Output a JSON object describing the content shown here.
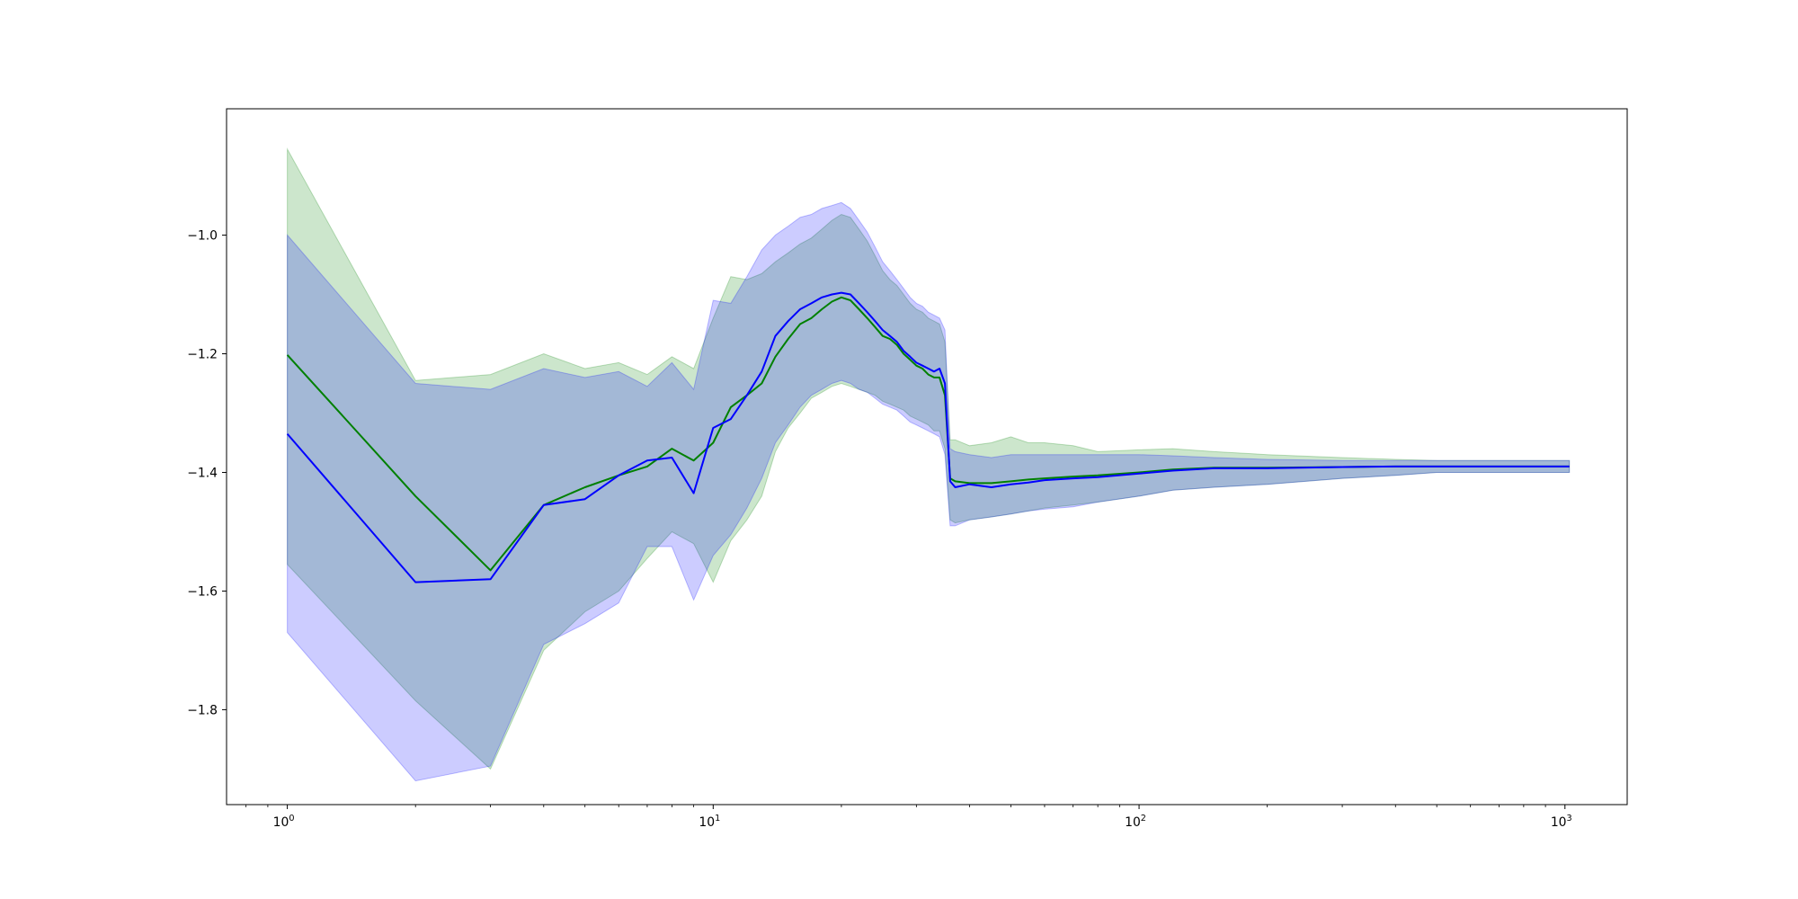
{
  "chart_data": {
    "type": "line",
    "title": "",
    "xlabel": "",
    "ylabel": "",
    "xscale": "log",
    "xlim": [
      0.72,
      1400
    ],
    "ylim": [
      -1.96,
      -0.787
    ],
    "grid": false,
    "legend": "none",
    "x_ticks": [
      {
        "value": 1,
        "base": "10",
        "exp": "0"
      },
      {
        "value": 10,
        "base": "10",
        "exp": "1"
      },
      {
        "value": 100,
        "base": "10",
        "exp": "2"
      },
      {
        "value": 1000,
        "base": "10",
        "exp": "3"
      }
    ],
    "y_ticks": [
      {
        "value": -1.0,
        "label": "−1.0"
      },
      {
        "value": -1.2,
        "label": "−1.2"
      },
      {
        "value": -1.4,
        "label": "−1.4"
      },
      {
        "value": -1.6,
        "label": "−1.6"
      },
      {
        "value": -1.8,
        "label": "−1.8"
      }
    ],
    "series": [
      {
        "color": "#008000",
        "band_color": "#008000",
        "band_opacity": 0.2,
        "x": [
          1,
          2,
          3,
          4,
          5,
          6,
          7,
          8,
          9,
          10,
          11,
          12,
          13,
          14,
          15,
          16,
          17,
          18,
          19,
          20,
          21,
          22,
          23,
          24,
          25,
          26,
          27,
          28,
          29,
          30,
          31,
          32,
          33,
          34,
          35,
          36,
          37,
          40,
          45,
          50,
          55,
          60,
          70,
          80,
          100,
          120,
          150,
          200,
          300,
          400,
          500,
          700,
          1024
        ],
        "mean": [
          -1.202,
          -1.44,
          -1.565,
          -1.455,
          -1.425,
          -1.405,
          -1.39,
          -1.36,
          -1.38,
          -1.35,
          -1.29,
          -1.27,
          -1.25,
          -1.205,
          -1.175,
          -1.15,
          -1.14,
          -1.125,
          -1.112,
          -1.105,
          -1.11,
          -1.125,
          -1.14,
          -1.155,
          -1.17,
          -1.175,
          -1.185,
          -1.2,
          -1.21,
          -1.22,
          -1.225,
          -1.235,
          -1.24,
          -1.24,
          -1.27,
          -1.41,
          -1.415,
          -1.418,
          -1.418,
          -1.415,
          -1.412,
          -1.41,
          -1.407,
          -1.405,
          -1.4,
          -1.395,
          -1.392,
          -1.392,
          -1.391,
          -1.39,
          -1.39,
          -1.39,
          -1.39
        ],
        "upper": [
          -0.855,
          -1.245,
          -1.235,
          -1.2,
          -1.225,
          -1.215,
          -1.235,
          -1.205,
          -1.225,
          -1.14,
          -1.07,
          -1.075,
          -1.065,
          -1.045,
          -1.03,
          -1.015,
          -1.005,
          -0.99,
          -0.975,
          -0.965,
          -0.97,
          -0.99,
          -1.01,
          -1.035,
          -1.06,
          -1.075,
          -1.085,
          -1.1,
          -1.115,
          -1.125,
          -1.13,
          -1.14,
          -1.145,
          -1.15,
          -1.18,
          -1.345,
          -1.345,
          -1.355,
          -1.35,
          -1.34,
          -1.35,
          -1.35,
          -1.355,
          -1.365,
          -1.362,
          -1.36,
          -1.365,
          -1.37,
          -1.375,
          -1.378,
          -1.38,
          -1.38,
          -1.38
        ],
        "lower": [
          -1.555,
          -1.785,
          -1.9,
          -1.7,
          -1.635,
          -1.6,
          -1.545,
          -1.5,
          -1.52,
          -1.585,
          -1.515,
          -1.48,
          -1.44,
          -1.365,
          -1.325,
          -1.3,
          -1.275,
          -1.265,
          -1.255,
          -1.25,
          -1.255,
          -1.26,
          -1.265,
          -1.27,
          -1.28,
          -1.285,
          -1.29,
          -1.295,
          -1.305,
          -1.31,
          -1.315,
          -1.32,
          -1.33,
          -1.33,
          -1.36,
          -1.48,
          -1.485,
          -1.48,
          -1.475,
          -1.47,
          -1.465,
          -1.46,
          -1.455,
          -1.45,
          -1.44,
          -1.43,
          -1.425,
          -1.42,
          -1.41,
          -1.405,
          -1.4,
          -1.4,
          -1.4
        ]
      },
      {
        "color": "#0000ff",
        "band_color": "#0000ff",
        "band_opacity": 0.2,
        "x": [
          1,
          2,
          3,
          4,
          5,
          6,
          7,
          8,
          9,
          10,
          11,
          12,
          13,
          14,
          15,
          16,
          17,
          18,
          19,
          20,
          21,
          22,
          23,
          24,
          25,
          26,
          27,
          28,
          29,
          30,
          31,
          32,
          33,
          34,
          35,
          36,
          37,
          40,
          45,
          50,
          55,
          60,
          70,
          80,
          100,
          120,
          150,
          200,
          300,
          400,
          500,
          700,
          1024
        ],
        "mean": [
          -1.335,
          -1.585,
          -1.58,
          -1.455,
          -1.445,
          -1.405,
          -1.38,
          -1.375,
          -1.435,
          -1.325,
          -1.31,
          -1.27,
          -1.23,
          -1.17,
          -1.145,
          -1.125,
          -1.115,
          -1.105,
          -1.1,
          -1.097,
          -1.1,
          -1.115,
          -1.13,
          -1.145,
          -1.16,
          -1.17,
          -1.18,
          -1.195,
          -1.205,
          -1.215,
          -1.22,
          -1.225,
          -1.23,
          -1.225,
          -1.25,
          -1.415,
          -1.425,
          -1.42,
          -1.425,
          -1.42,
          -1.417,
          -1.413,
          -1.41,
          -1.408,
          -1.402,
          -1.397,
          -1.393,
          -1.393,
          -1.391,
          -1.39,
          -1.39,
          -1.39,
          -1.39
        ],
        "upper": [
          -1.0,
          -1.25,
          -1.26,
          -1.225,
          -1.24,
          -1.23,
          -1.255,
          -1.215,
          -1.26,
          -1.11,
          -1.115,
          -1.07,
          -1.025,
          -1.0,
          -0.985,
          -0.97,
          -0.965,
          -0.955,
          -0.95,
          -0.945,
          -0.955,
          -0.975,
          -0.995,
          -1.02,
          -1.045,
          -1.06,
          -1.075,
          -1.09,
          -1.105,
          -1.115,
          -1.12,
          -1.13,
          -1.135,
          -1.14,
          -1.16,
          -1.36,
          -1.365,
          -1.37,
          -1.375,
          -1.37,
          -1.37,
          -1.37,
          -1.37,
          -1.37,
          -1.37,
          -1.372,
          -1.375,
          -1.378,
          -1.38,
          -1.38,
          -1.38,
          -1.38,
          -1.38
        ],
        "lower": [
          -1.67,
          -1.92,
          -1.895,
          -1.69,
          -1.655,
          -1.62,
          -1.525,
          -1.525,
          -1.615,
          -1.54,
          -1.505,
          -1.46,
          -1.41,
          -1.35,
          -1.32,
          -1.29,
          -1.27,
          -1.26,
          -1.25,
          -1.245,
          -1.25,
          -1.26,
          -1.265,
          -1.275,
          -1.285,
          -1.29,
          -1.295,
          -1.305,
          -1.315,
          -1.32,
          -1.325,
          -1.33,
          -1.335,
          -1.34,
          -1.37,
          -1.49,
          -1.49,
          -1.48,
          -1.475,
          -1.47,
          -1.465,
          -1.462,
          -1.458,
          -1.45,
          -1.44,
          -1.43,
          -1.425,
          -1.42,
          -1.41,
          -1.405,
          -1.4,
          -1.4,
          -1.4
        ]
      }
    ]
  }
}
